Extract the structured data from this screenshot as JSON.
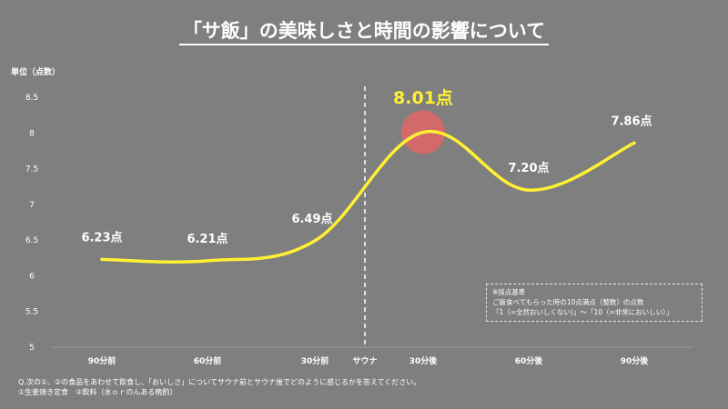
{
  "chart_data": {
    "type": "line",
    "title": "「サ飯」の美味しさと時間の影響について",
    "ylabel": "単位（点数）",
    "xlabel": "",
    "ylim": [
      5,
      8.5
    ],
    "yticks": [
      "8.5",
      "8",
      "7.5",
      "7",
      "6.5",
      "6",
      "5.5",
      "5"
    ],
    "categories": [
      "90分前",
      "60分前",
      "30分前",
      "30分後",
      "60分後",
      "90分後"
    ],
    "values": [
      6.23,
      6.21,
      6.49,
      8.01,
      7.2,
      7.86
    ],
    "data_labels": [
      "6.23点",
      "6.21点",
      "6.49点",
      "8.01点",
      "7.20点",
      "7.86点"
    ],
    "divider_label": "サウナ",
    "highlight_index": 3,
    "series_color": "#fff033",
    "highlight_color": "#e06666"
  },
  "note": {
    "heading": "※採点基準",
    "line1": "ご飯食べてもらった時の10点満点（整数）の点数",
    "line2": "「1（=全然おいしくない)」～「10（=非常においしい）」"
  },
  "footer": {
    "line1": "Q.次の①、②の食品をあわせて飲食し、「おいしさ」についてサウナ前とサウナ後でどのように感じるかを答えてください。",
    "line2": "①生姜焼き定食　②飲料（水ｏｒのんある晩酌）"
  }
}
